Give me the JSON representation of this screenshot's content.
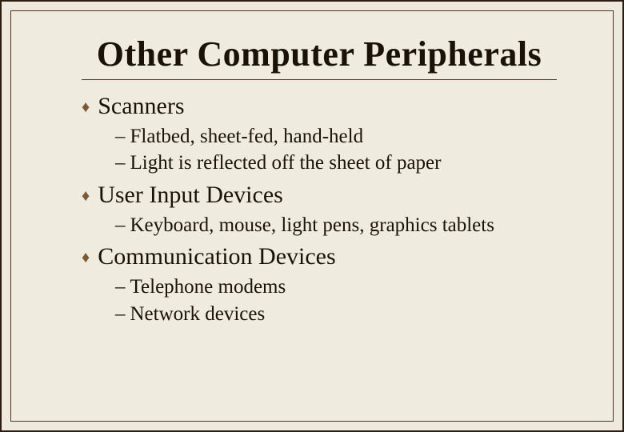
{
  "slide": {
    "title": "Other Computer Peripherals",
    "colors": {
      "background": "#efecdf",
      "outer_border": "#2b1d0f",
      "inner_border": "#4a3620",
      "title_text": "#1a1208",
      "body_text": "#1a1208",
      "bullet_diamond": "#7a5a32",
      "rule": "#5a4226"
    },
    "typography": {
      "title_fontsize_pt": 33,
      "level1_fontsize_pt": 22,
      "level2_fontsize_pt": 19,
      "font_family": "Times New Roman"
    },
    "bullets": [
      {
        "label": "Scanners",
        "sub": [
          "Flatbed, sheet-fed, hand-held",
          "Light is reflected off the sheet of paper"
        ]
      },
      {
        "label": "User Input Devices",
        "sub": [
          "Keyboard, mouse, light pens, graphics tablets"
        ]
      },
      {
        "label": "Communication Devices",
        "sub": [
          "Telephone modems",
          "Network devices"
        ]
      }
    ]
  }
}
